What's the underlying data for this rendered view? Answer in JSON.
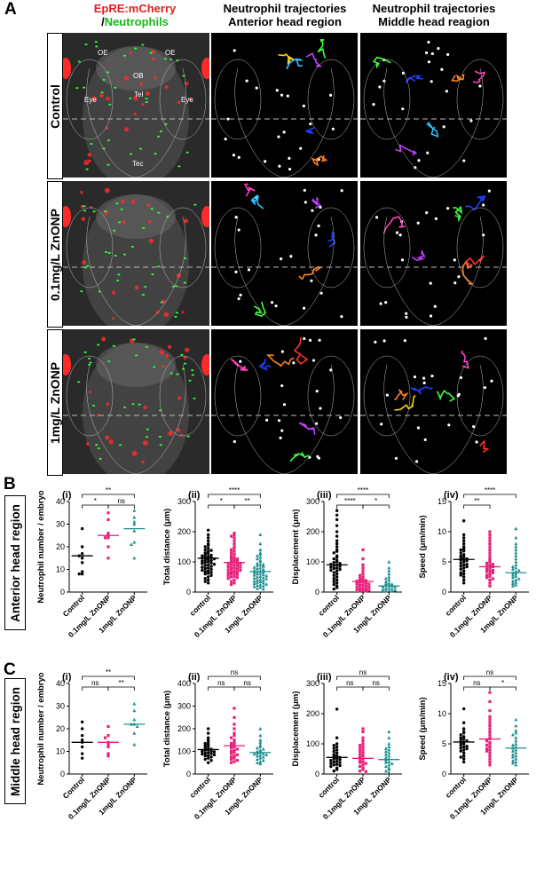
{
  "panels": {
    "A": "A",
    "B": "B",
    "C": "C"
  },
  "column_titles": {
    "col1_line1": "EpRE:mCherry",
    "col1_slash": "/",
    "col1_line2": "Neutrophils",
    "col2_line1": "Neutrophil trajectories",
    "col2_line2": "Anterior head region",
    "col3_line1": "Neutrophil trajectories",
    "col3_line2": "Middle head reagion"
  },
  "row_labels": [
    "Control",
    "0.1mg/L ZnONP",
    "1mg/L ZnONP"
  ],
  "anatomy_labels": {
    "oe_left": "OE",
    "oe_right": "OE",
    "ob": "OB",
    "eye_left": "Eye",
    "eye_right": "Eye",
    "tel": "Tel",
    "tec": "Tec"
  },
  "region_labels": {
    "B": "Anterior head region",
    "C": "Middle head region"
  },
  "colors": {
    "control": "#000000",
    "low": "#e8207a",
    "high": "#1f8f8f",
    "mcherry": "#ff2020",
    "neutrophil": "#22dd22"
  },
  "chart_data": [
    {
      "id": "B-i",
      "panel": "B",
      "sub": "(i)",
      "type": "scatter",
      "ylabel": "Neutrophil number / embryo",
      "ylim": [
        0,
        40
      ],
      "yticks": [
        0,
        10,
        20,
        30,
        40
      ],
      "categories": [
        "Control",
        "0.1mg/L ZnONP",
        "1mg/L ZnONP"
      ],
      "series": [
        {
          "values": [
            28,
            20,
            17,
            16,
            15,
            13,
            9,
            8,
            8
          ],
          "mean": 16
        },
        {
          "values": [
            35,
            32,
            26,
            25,
            24,
            24,
            20,
            15
          ],
          "mean": 25
        },
        {
          "values": [
            36,
            33,
            31,
            30,
            27,
            22,
            21,
            15
          ],
          "mean": 28
        }
      ],
      "brackets": [
        {
          "from": 0,
          "to": 1,
          "label": "*",
          "level": 1
        },
        {
          "from": 1,
          "to": 2,
          "label": "ns",
          "level": 1
        },
        {
          "from": 0,
          "to": 2,
          "label": "**",
          "level": 2
        }
      ]
    },
    {
      "id": "B-ii",
      "panel": "B",
      "sub": "(ii)",
      "type": "scatter",
      "ylabel": "Total distance (μm)",
      "ylim": [
        0,
        300
      ],
      "yticks": [
        0,
        100,
        200,
        300
      ],
      "categories": [
        "control",
        "0.1mg/L ZnONP",
        "1mg/L ZnONP"
      ],
      "series": [
        {
          "values": [
            205,
            190,
            180,
            170,
            160,
            155,
            150,
            145,
            140,
            138,
            135,
            130,
            128,
            125,
            122,
            120,
            118,
            116,
            114,
            112,
            110,
            108,
            106,
            104,
            102,
            100,
            98,
            96,
            94,
            92,
            90,
            88,
            85,
            82,
            80,
            78,
            75,
            72,
            70,
            68,
            65,
            62,
            60,
            55,
            50,
            45,
            40,
            35,
            30
          ],
          "mean": 112
        },
        {
          "values": [
            195,
            190,
            185,
            180,
            170,
            160,
            150,
            145,
            140,
            135,
            130,
            125,
            120,
            115,
            112,
            110,
            108,
            105,
            102,
            100,
            98,
            96,
            94,
            92,
            90,
            88,
            86,
            84,
            82,
            80,
            78,
            76,
            74,
            72,
            70,
            68,
            66,
            64,
            62,
            60,
            58,
            55,
            52,
            50,
            48,
            45,
            40,
            35,
            30,
            25
          ],
          "mean": 98
        },
        {
          "values": [
            190,
            160,
            140,
            130,
            125,
            120,
            115,
            110,
            105,
            100,
            95,
            92,
            90,
            88,
            85,
            82,
            80,
            78,
            75,
            72,
            70,
            68,
            66,
            64,
            62,
            60,
            58,
            56,
            54,
            52,
            50,
            48,
            46,
            44,
            42,
            40,
            38,
            36,
            34,
            32,
            30,
            28,
            26,
            24,
            22,
            20,
            18,
            15,
            12,
            10
          ],
          "mean": 68
        }
      ],
      "brackets": [
        {
          "from": 0,
          "to": 1,
          "label": "*",
          "level": 1
        },
        {
          "from": 1,
          "to": 2,
          "label": "**",
          "level": 1
        },
        {
          "from": 0,
          "to": 2,
          "label": "****",
          "level": 2
        }
      ]
    },
    {
      "id": "B-iii",
      "panel": "B",
      "sub": "(iii)",
      "type": "scatter",
      "ylabel": "Displacement (μm)",
      "ylim": [
        0,
        300
      ],
      "yticks": [
        0,
        100,
        200,
        300
      ],
      "categories": [
        "control",
        "0.1mg/L ZnONP",
        "1mg/L ZnONP"
      ],
      "series": [
        {
          "values": [
            270,
            255,
            240,
            220,
            200,
            185,
            170,
            160,
            150,
            140,
            135,
            130,
            120,
            115,
            110,
            105,
            100,
            98,
            95,
            92,
            90,
            88,
            85,
            82,
            80,
            78,
            75,
            72,
            70,
            65,
            60,
            55,
            50,
            45,
            40,
            35,
            30,
            25,
            20,
            15,
            10
          ],
          "mean": 90
        },
        {
          "values": [
            140,
            110,
            90,
            80,
            70,
            60,
            55,
            50,
            45,
            42,
            40,
            38,
            36,
            34,
            32,
            30,
            28,
            26,
            24,
            22,
            20,
            18,
            16,
            14,
            12,
            10,
            8,
            6,
            5,
            4,
            3
          ],
          "mean": 35
        },
        {
          "values": [
            100,
            80,
            70,
            60,
            50,
            45,
            40,
            35,
            30,
            28,
            26,
            24,
            22,
            20,
            18,
            16,
            14,
            12,
            10,
            8,
            6,
            5,
            4,
            3,
            2
          ],
          "mean": 20
        }
      ],
      "brackets": [
        {
          "from": 0,
          "to": 1,
          "label": "****",
          "level": 1
        },
        {
          "from": 1,
          "to": 2,
          "label": "*",
          "level": 1
        },
        {
          "from": 0,
          "to": 2,
          "label": "****",
          "level": 2
        }
      ]
    },
    {
      "id": "B-iv",
      "panel": "B",
      "sub": "(iv)",
      "type": "scatter",
      "ylabel": "Speed (μm/min)",
      "ylim": [
        0,
        15
      ],
      "yticks": [
        0,
        5,
        10,
        15
      ],
      "categories": [
        "control",
        "0.1mg/L ZnONP",
        "1mg/L ZnONP"
      ],
      "series": [
        {
          "values": [
            11.8,
            9.5,
            9,
            8.5,
            8,
            7.5,
            7.2,
            7,
            6.8,
            6.5,
            6.2,
            6,
            5.8,
            5.6,
            5.5,
            5.4,
            5.3,
            5.2,
            5,
            4.8,
            4.6,
            4.5,
            4.3,
            4.2,
            4,
            3.8,
            3.5,
            3.2,
            3,
            2.8,
            2.5,
            2,
            1.5
          ],
          "mean": 5.4
        },
        {
          "values": [
            10,
            9.5,
            9,
            8.5,
            8,
            7.5,
            7,
            6.5,
            6,
            5.5,
            5.2,
            5,
            4.8,
            4.6,
            4.5,
            4.3,
            4.2,
            4,
            3.8,
            3.6,
            3.5,
            3.4,
            3.2,
            3,
            2.8,
            2.6,
            2.4,
            2.2,
            2,
            1.5,
            1
          ],
          "mean": 4.2
        },
        {
          "values": [
            10.5,
            9,
            8,
            7.5,
            7,
            6.5,
            6,
            5.5,
            5,
            4.5,
            4.2,
            4,
            3.8,
            3.6,
            3.4,
            3.2,
            3,
            2.8,
            2.6,
            2.4,
            2.2,
            2,
            1.8,
            1.6,
            1.4,
            1.2,
            1
          ],
          "mean": 3.2
        }
      ],
      "brackets": [
        {
          "from": 0,
          "to": 1,
          "label": "**",
          "level": 1
        },
        {
          "from": 0,
          "to": 2,
          "label": "****",
          "level": 2
        }
      ]
    },
    {
      "id": "C-i",
      "panel": "C",
      "sub": "(i)",
      "type": "scatter",
      "ylabel": "Neutrophil number / embryo",
      "ylim": [
        0,
        40
      ],
      "yticks": [
        0,
        10,
        20,
        30,
        40
      ],
      "categories": [
        "Control",
        "0.1mg/L ZnONP",
        "1mg/L ZnONP"
      ],
      "series": [
        {
          "values": [
            23,
            20,
            17,
            15,
            14,
            12,
            9,
            7
          ],
          "mean": 14
        },
        {
          "values": [
            21,
            17,
            16,
            14,
            13,
            12,
            9,
            8
          ],
          "mean": 14
        },
        {
          "values": [
            31,
            28,
            24,
            22,
            22,
            21,
            18,
            13
          ],
          "mean": 22
        }
      ],
      "brackets": [
        {
          "from": 0,
          "to": 1,
          "label": "ns",
          "level": 1
        },
        {
          "from": 1,
          "to": 2,
          "label": "**",
          "level": 1
        },
        {
          "from": 0,
          "to": 2,
          "label": "**",
          "level": 2
        }
      ]
    },
    {
      "id": "C-ii",
      "panel": "C",
      "sub": "(ii)",
      "type": "scatter",
      "ylabel": "Total distance (μm)",
      "ylim": [
        0,
        400
      ],
      "yticks": [
        0,
        100,
        200,
        300,
        400
      ],
      "categories": [
        "control",
        "0.1mg/L ZnONP",
        "1mg/L ZnONP"
      ],
      "series": [
        {
          "values": [
            200,
            180,
            160,
            150,
            140,
            135,
            130,
            125,
            120,
            115,
            110,
            108,
            105,
            102,
            100,
            98,
            95,
            92,
            90,
            88,
            85,
            82,
            80,
            75,
            70,
            65,
            60,
            50
          ],
          "mean": 108
        },
        {
          "values": [
            290,
            250,
            220,
            200,
            180,
            170,
            160,
            150,
            140,
            135,
            130,
            125,
            120,
            115,
            110,
            105,
            100,
            95,
            90,
            85,
            80,
            75,
            70,
            65,
            60,
            55,
            50
          ],
          "mean": 125
        },
        {
          "values": [
            200,
            170,
            150,
            140,
            130,
            120,
            115,
            110,
            105,
            100,
            95,
            92,
            90,
            88,
            85,
            82,
            80,
            75,
            70,
            65,
            60,
            55,
            50,
            45
          ],
          "mean": 95
        }
      ],
      "brackets": [
        {
          "from": 0,
          "to": 1,
          "label": "ns",
          "level": 1
        },
        {
          "from": 1,
          "to": 2,
          "label": "ns",
          "level": 1
        },
        {
          "from": 0,
          "to": 2,
          "label": "ns",
          "level": 2
        }
      ]
    },
    {
      "id": "C-iii",
      "panel": "C",
      "sub": "(iii)",
      "type": "scatter",
      "ylabel": "Displacement (μm)",
      "ylim": [
        0,
        300
      ],
      "yticks": [
        0,
        100,
        200,
        300
      ],
      "categories": [
        "control",
        "0.1mg/L ZnONP",
        "1mg/L ZnONP"
      ],
      "series": [
        {
          "values": [
            215,
            120,
            100,
            95,
            90,
            85,
            80,
            75,
            70,
            65,
            60,
            58,
            55,
            52,
            50,
            48,
            45,
            42,
            40,
            38,
            35,
            32,
            30,
            28,
            25,
            20,
            15,
            10
          ],
          "mean": 55
        },
        {
          "values": [
            150,
            140,
            120,
            110,
            100,
            95,
            90,
            85,
            80,
            75,
            70,
            65,
            60,
            55,
            50,
            45,
            40,
            38,
            35,
            30,
            25,
            20,
            15,
            10,
            8
          ],
          "mean": 52
        },
        {
          "values": [
            140,
            120,
            100,
            90,
            85,
            80,
            75,
            70,
            65,
            60,
            55,
            50,
            45,
            40,
            38,
            35,
            30,
            25,
            20,
            15,
            10,
            5
          ],
          "mean": 48
        }
      ],
      "brackets": [
        {
          "from": 0,
          "to": 1,
          "label": "ns",
          "level": 1
        },
        {
          "from": 1,
          "to": 2,
          "label": "ns",
          "level": 1
        },
        {
          "from": 0,
          "to": 2,
          "label": "ns",
          "level": 2
        }
      ]
    },
    {
      "id": "C-iv",
      "panel": "C",
      "sub": "(iv)",
      "type": "scatter",
      "ylabel": "Speed (μm/min)",
      "ylim": [
        0,
        15
      ],
      "yticks": [
        0,
        5,
        10,
        15
      ],
      "categories": [
        "control",
        "0.1mg/L ZnONP",
        "1mg/L ZnONP"
      ],
      "series": [
        {
          "values": [
            10.8,
            8.5,
            7.5,
            7,
            6.8,
            6.5,
            6.2,
            6,
            5.8,
            5.6,
            5.5,
            5.3,
            5.2,
            5,
            4.8,
            4.6,
            4.5,
            4.3,
            4.2,
            4,
            3.8,
            3.5,
            3,
            2.8,
            2.5,
            2
          ],
          "mean": 5.3
        },
        {
          "values": [
            13.5,
            12,
            10.5,
            9.5,
            9,
            8.5,
            8,
            7.5,
            7,
            6.5,
            6,
            5.8,
            5.5,
            5.2,
            5,
            4.8,
            4.5,
            4.2,
            4,
            3.8,
            3.5,
            3,
            2.5,
            2,
            1.5
          ],
          "mean": 5.8
        },
        {
          "values": [
            9,
            8,
            7.2,
            6.8,
            6.5,
            6,
            5.5,
            5,
            4.8,
            4.5,
            4.3,
            4,
            3.8,
            3.5,
            3.2,
            3,
            2.8,
            2.5,
            2.2,
            2,
            1.8,
            1.5
          ],
          "mean": 4.3
        }
      ],
      "brackets": [
        {
          "from": 0,
          "to": 1,
          "label": "ns",
          "level": 1
        },
        {
          "from": 1,
          "to": 2,
          "label": "*",
          "level": 1
        },
        {
          "from": 0,
          "to": 2,
          "label": "ns",
          "level": 2
        }
      ]
    }
  ]
}
